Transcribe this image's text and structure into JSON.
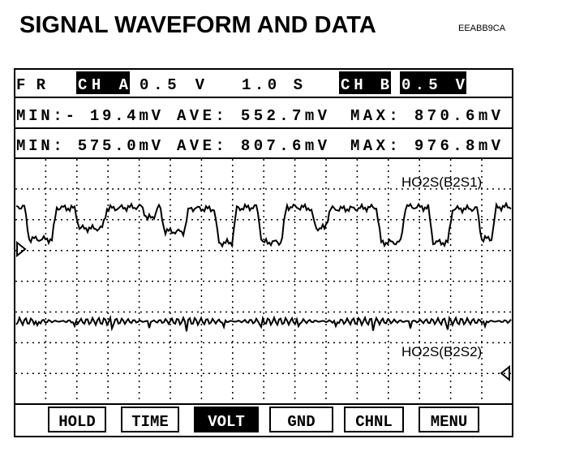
{
  "header": {
    "title": "SIGNAL WAVEFORM AND DATA",
    "code": "EEABB9CA"
  },
  "screen": {
    "row1": [
      "FR",
      "CH A",
      "0.5 V",
      "1.0 S",
      "CH B",
      "0.5 V"
    ],
    "row2": [
      "MIN:- 19.4mV",
      "AVE: 552.7mV",
      "MAX: 870.6mV"
    ],
    "row3": [
      "MIN: 575.0mV",
      "AVE: 807.6mV",
      "MAX: 976.8mV"
    ],
    "traces": [
      "HO2S(B2S1)",
      "HO2S(B2S2)"
    ],
    "buttons": [
      "HOLD",
      "TIME",
      "VOLT",
      "GND",
      "CHNL",
      "MENU"
    ]
  }
}
